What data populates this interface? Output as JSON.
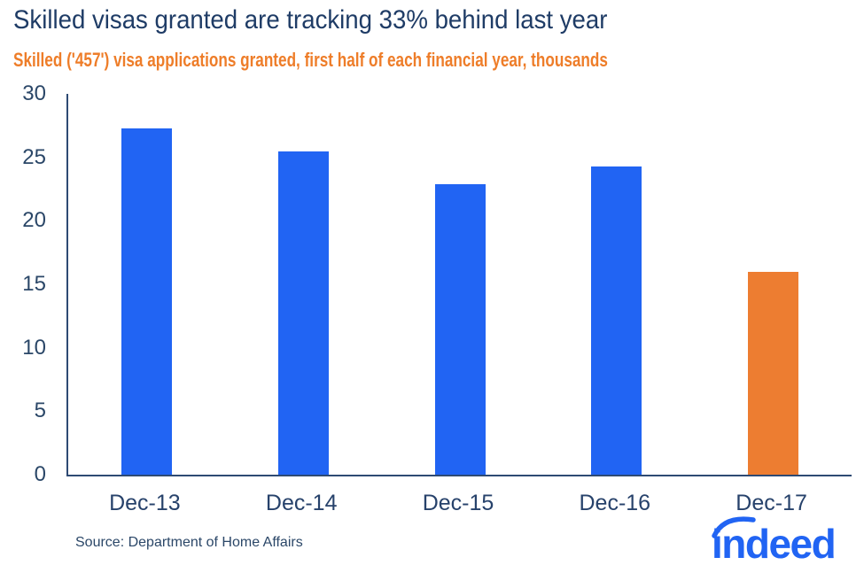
{
  "header": {
    "title": "Skilled visas granted are tracking 33% behind last year",
    "subtitle": "Skilled ('457') visa applications granted, first half of each financial year, thousands"
  },
  "chart_data": {
    "type": "bar",
    "title": "Skilled visas granted are tracking 33% behind last year",
    "subtitle": "Skilled ('457') visa applications granted, first half of each financial year, thousands",
    "categories": [
      "Dec-13",
      "Dec-14",
      "Dec-15",
      "Dec-16",
      "Dec-17"
    ],
    "values": [
      27.3,
      25.5,
      22.9,
      24.3,
      16.0
    ],
    "bar_colors": [
      "#2164F3",
      "#2164F3",
      "#2164F3",
      "#2164F3",
      "#ED7D31"
    ],
    "xlabel": "",
    "ylabel": "",
    "ylim": [
      0,
      30
    ],
    "ytick_step": 5,
    "yticks": [
      0,
      5,
      10,
      15,
      20,
      25,
      30
    ],
    "grid": false,
    "legend": null
  },
  "footer": {
    "source": "Source: Department of Home Affairs",
    "logo_text": "indeed"
  },
  "colors": {
    "title_navy": "#1F3C66",
    "subtitle_orange": "#EE7D29",
    "axis_navy": "#2E4A73",
    "tick_navy": "#2B4768",
    "bar_blue": "#2164F3",
    "bar_orange": "#ED7D31",
    "logo_blue": "#2164F3"
  }
}
